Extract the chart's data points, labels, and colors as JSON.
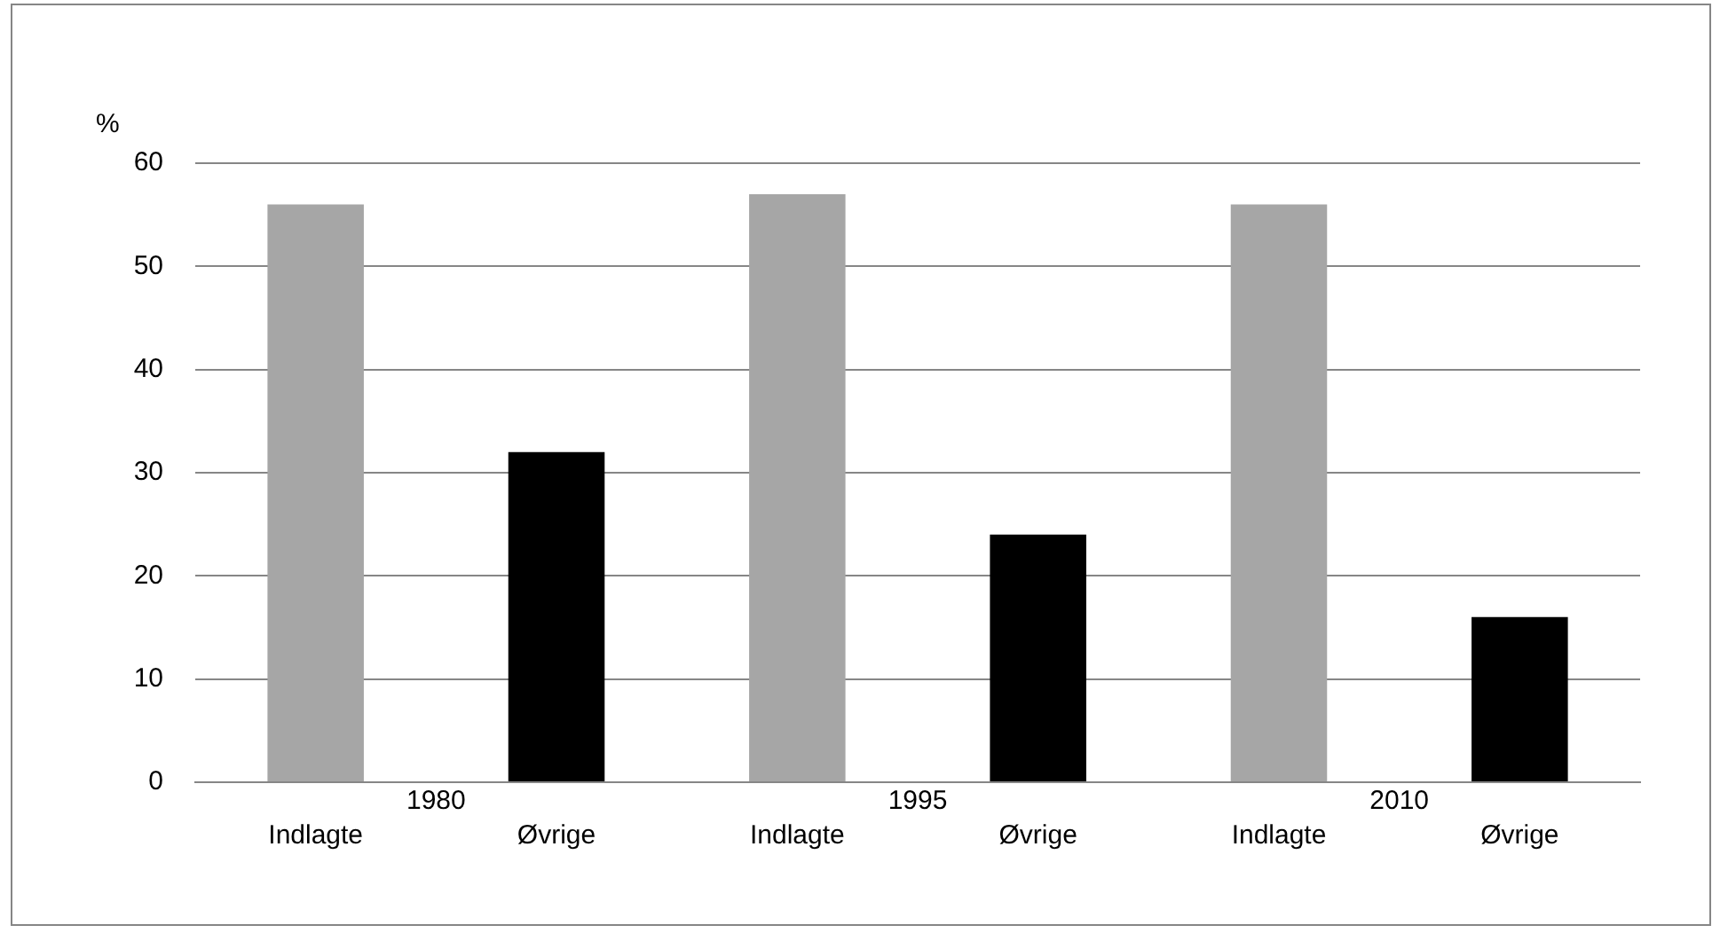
{
  "chart_data": {
    "type": "bar",
    "ylabel": "%",
    "categories": [
      "1980",
      "1995",
      "2010"
    ],
    "series": [
      {
        "name": "Indlagte",
        "color": "#a6a6a6",
        "values": [
          56,
          57,
          56
        ]
      },
      {
        "name": "Øvrige",
        "color": "#000000",
        "values": [
          32,
          24,
          16
        ]
      }
    ],
    "ylim": [
      0,
      60
    ],
    "yticks": [
      0,
      10,
      20,
      30,
      40,
      50,
      60
    ],
    "grid": "y",
    "legend": false
  }
}
